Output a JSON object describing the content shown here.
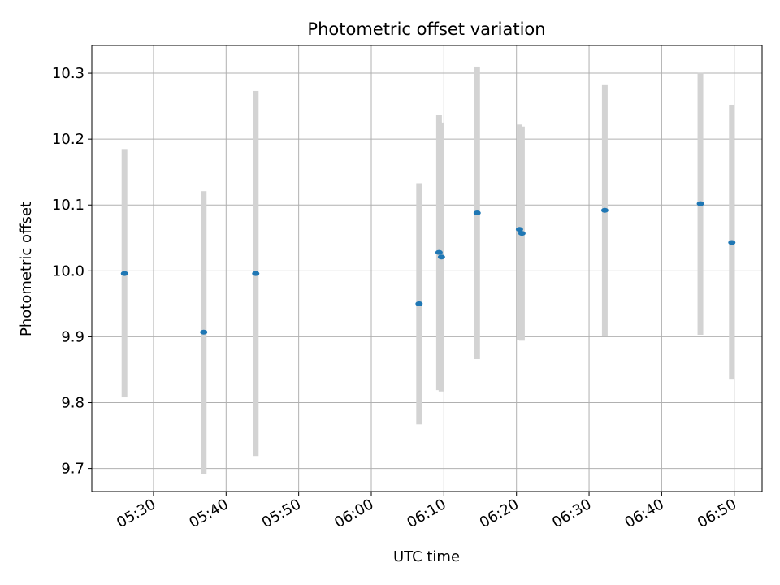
{
  "chart_data": {
    "type": "scatter",
    "title": "Photometric offset variation",
    "xlabel": "UTC time",
    "ylabel": "Photometric offset",
    "x_unit": "UTC time of day (HH:MM)",
    "xlim": [
      "05:21:30",
      "06:53:50"
    ],
    "ylim": [
      9.665,
      10.342
    ],
    "grid": true,
    "legend": "none",
    "x_ticks": [
      "05:30",
      "05:40",
      "05:50",
      "06:00",
      "06:10",
      "06:20",
      "06:30",
      "06:40",
      "06:50"
    ],
    "y_ticks": [
      "9.7",
      "9.8",
      "9.9",
      "10.0",
      "10.1",
      "10.2",
      "10.3"
    ],
    "points": [
      {
        "x": "05:26:00",
        "y": 9.996,
        "yerr_low": 9.808,
        "yerr_high": 10.185
      },
      {
        "x": "05:36:55",
        "y": 9.907,
        "yerr_low": 9.692,
        "yerr_high": 10.121
      },
      {
        "x": "05:44:05",
        "y": 9.996,
        "yerr_low": 9.719,
        "yerr_high": 10.273
      },
      {
        "x": "06:06:35",
        "y": 9.95,
        "yerr_low": 9.767,
        "yerr_high": 10.133
      },
      {
        "x": "06:09:20",
        "y": 10.028,
        "yerr_low": 9.819,
        "yerr_high": 10.236
      },
      {
        "x": "06:09:40",
        "y": 10.021,
        "yerr_low": 9.817,
        "yerr_high": 10.225
      },
      {
        "x": "06:14:35",
        "y": 10.088,
        "yerr_low": 9.866,
        "yerr_high": 10.31
      },
      {
        "x": "06:20:25",
        "y": 10.063,
        "yerr_low": 9.895,
        "yerr_high": 10.222
      },
      {
        "x": "06:20:45",
        "y": 10.057,
        "yerr_low": 9.894,
        "yerr_high": 10.219
      },
      {
        "x": "06:32:10",
        "y": 10.092,
        "yerr_low": 9.901,
        "yerr_high": 10.283
      },
      {
        "x": "06:45:20",
        "y": 10.102,
        "yerr_low": 9.903,
        "yerr_high": 10.301
      },
      {
        "x": "06:49:40",
        "y": 10.043,
        "yerr_low": 9.835,
        "yerr_high": 10.252
      }
    ],
    "colors": {
      "point": "#1f77b4",
      "error_bar": "#d3d3d3",
      "grid": "#b0b0b0",
      "background": "#ffffff"
    }
  }
}
